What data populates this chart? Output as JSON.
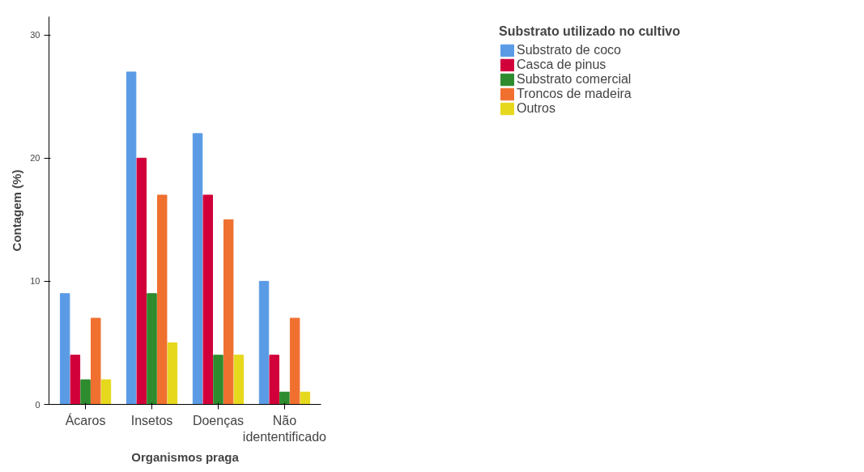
{
  "chart_data": {
    "type": "bar",
    "xlabel": "Organismos praga",
    "ylabel": "Contagem (%)",
    "legend_title": "Substrato utilizado no cultivo",
    "categories": [
      "Ácaros",
      "Insetos",
      "Doenças",
      "Não\nidententificado"
    ],
    "series": [
      {
        "name": "Substrato de coco",
        "color": "#5b9be6",
        "values": [
          9,
          27,
          22,
          10
        ]
      },
      {
        "name": "Casca de pinus",
        "color": "#d2003a",
        "values": [
          4,
          20,
          17,
          4
        ]
      },
      {
        "name": "Substrato comercial",
        "color": "#2e8b2e",
        "values": [
          2,
          9,
          4,
          1
        ]
      },
      {
        "name": "Troncos de madeira",
        "color": "#f07030",
        "values": [
          7,
          17,
          15,
          7
        ]
      },
      {
        "name": "Outros",
        "color": "#e6d81c",
        "values": [
          2,
          5,
          4,
          1
        ]
      }
    ],
    "ylim": [
      0,
      31.5
    ],
    "yticks": [
      0,
      10,
      20,
      30
    ],
    "grid": false,
    "legend": "top right"
  }
}
